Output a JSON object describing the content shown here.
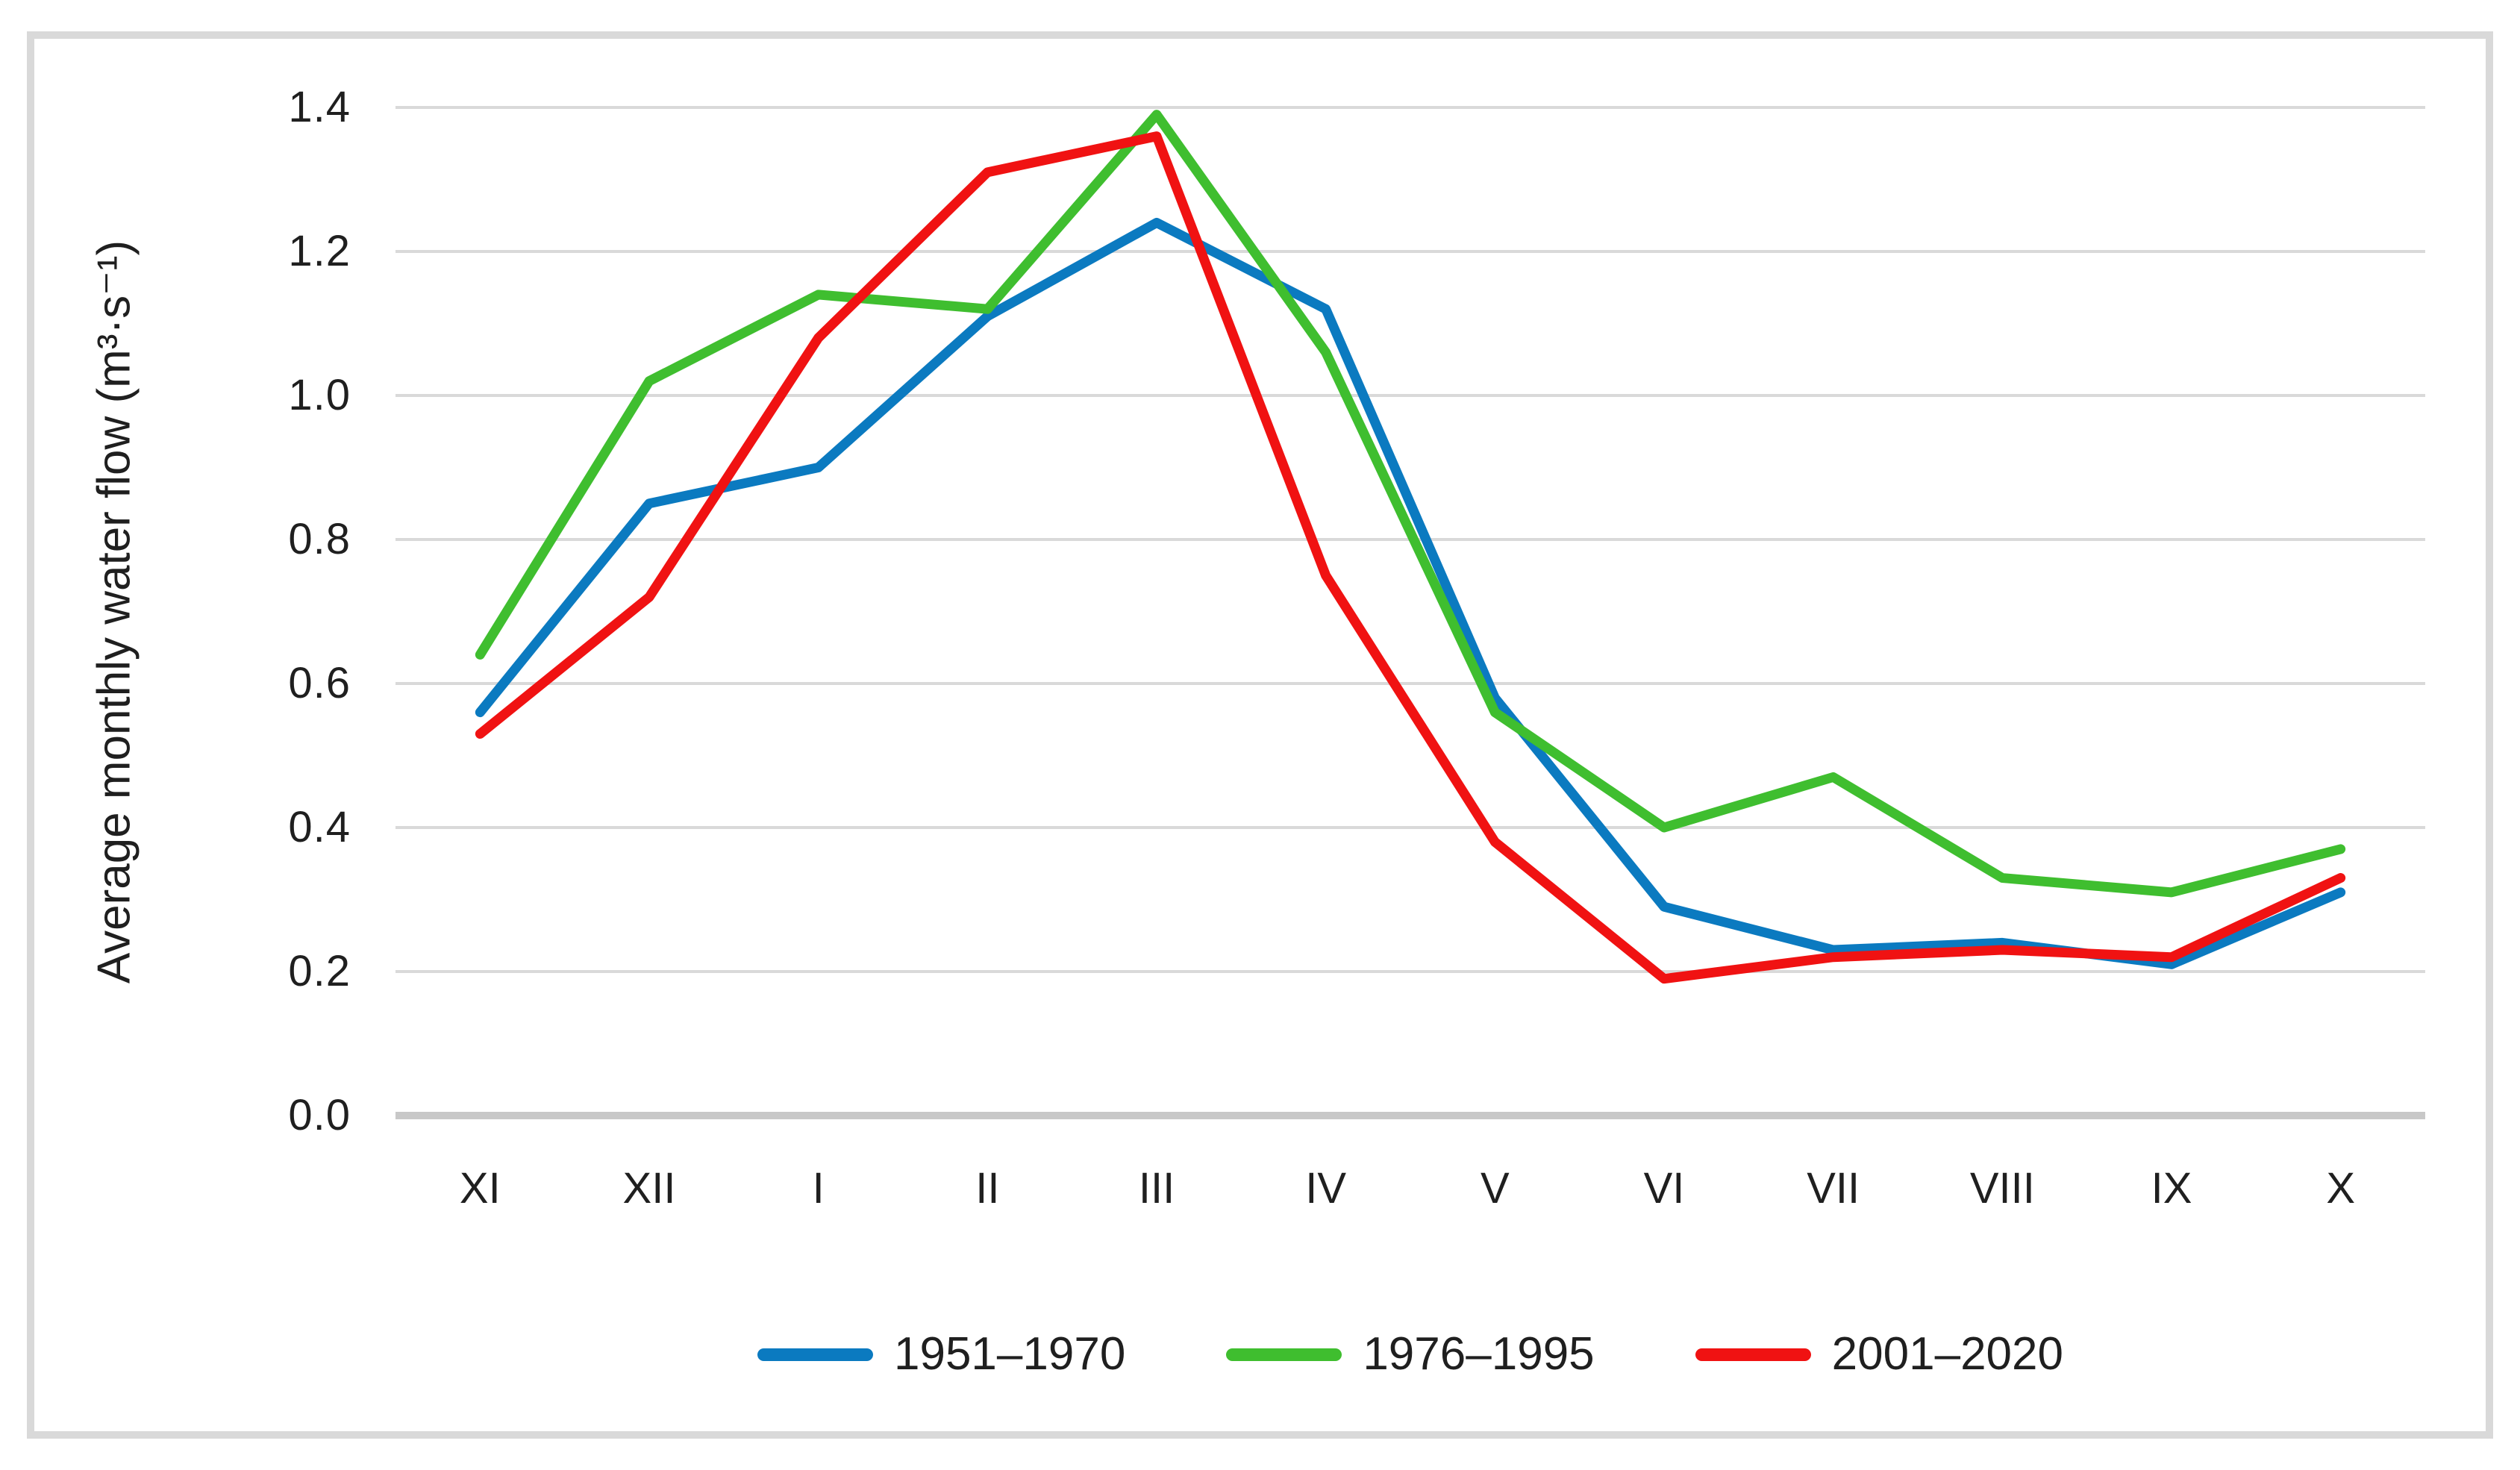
{
  "chart_data": {
    "type": "line",
    "title": "",
    "xlabel": "",
    "ylabel": "Average monthly water flow (m³·s⁻¹)",
    "categories": [
      "XI",
      "XII",
      "I",
      "II",
      "III",
      "IV",
      "V",
      "VI",
      "VII",
      "VIII",
      "IX",
      "X"
    ],
    "yticks": [
      "1.4",
      "1.2",
      "1.0",
      "0.8",
      "0.6",
      "0.4",
      "0.2",
      "0.0"
    ],
    "ylim": [
      0,
      1.4
    ],
    "grid": true,
    "legend_position": "bottom",
    "series": [
      {
        "name": "1951–1970",
        "color": "#0b7ac0",
        "values": [
          0.56,
          0.85,
          0.9,
          1.11,
          1.24,
          1.12,
          0.58,
          0.29,
          0.23,
          0.24,
          0.21,
          0.31
        ]
      },
      {
        "name": "1976–1995",
        "color": "#3fbe2f",
        "values": [
          0.64,
          1.02,
          1.14,
          1.12,
          1.39,
          1.06,
          0.56,
          0.4,
          0.47,
          0.33,
          0.31,
          0.37
        ]
      },
      {
        "name": "2001–2020",
        "color": "#f01212",
        "values": [
          0.53,
          0.72,
          1.08,
          1.31,
          1.36,
          0.75,
          0.38,
          0.19,
          0.22,
          0.23,
          0.22,
          0.33
        ]
      }
    ],
    "line_color_grid": "#d9d9d9",
    "line_color_axis": "#c8c8c8"
  }
}
